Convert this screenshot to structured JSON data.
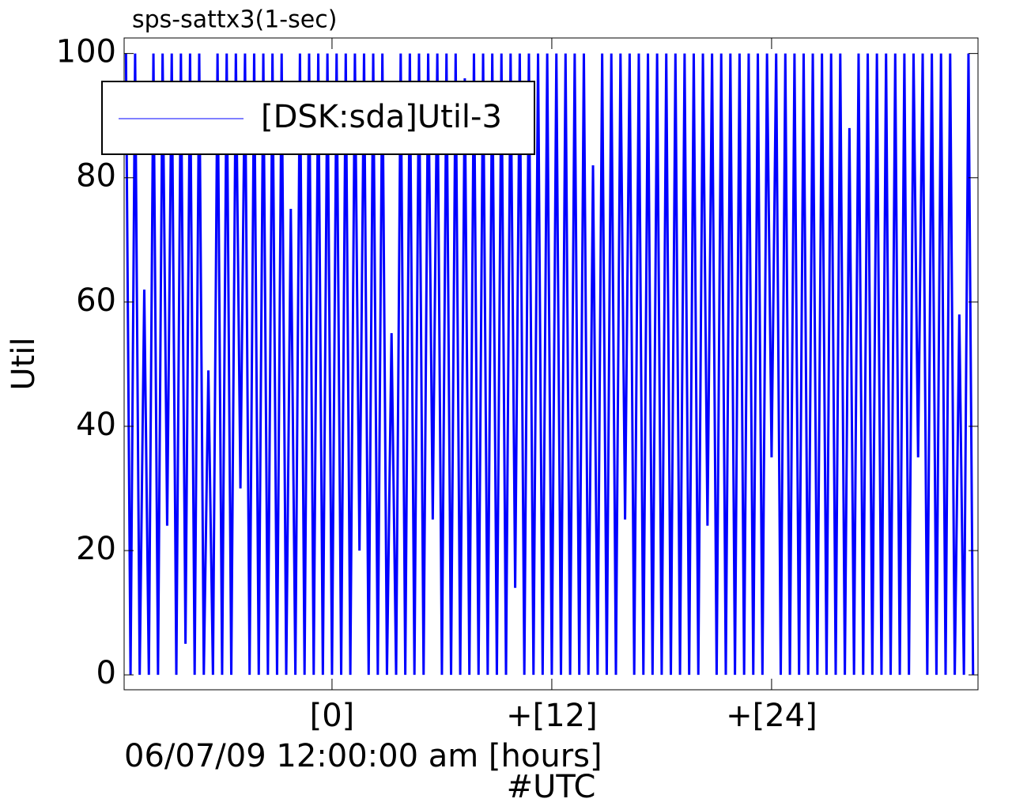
{
  "chart_data": {
    "type": "line",
    "title": "sps-sattx3(1-sec)",
    "x_label": "06/07/09 12:00:00 am [hours]",
    "x_label_2": "#UTC",
    "y_label": "Util",
    "legend": "upper left",
    "xlim": [
      -11.35,
      35.27
    ],
    "ylim": [
      -2.4,
      102.5
    ],
    "xticks": [
      {
        "value": 0,
        "label": "[0]"
      },
      {
        "value": 12,
        "label": "+[12]"
      },
      {
        "value": 24,
        "label": "+[24]"
      }
    ],
    "yticks": [
      0,
      20,
      40,
      60,
      80,
      100
    ],
    "x": [
      -11.25,
      -11,
      -10.75,
      -10.5,
      -10.25,
      -10,
      -9.75,
      -9.5,
      -9.25,
      -9,
      -8.75,
      -8.5,
      -8.25,
      -8,
      -7.75,
      -7.5,
      -7.25,
      -7,
      -6.75,
      -6.5,
      -6.25,
      -6,
      -5.75,
      -5.5,
      -5.25,
      -5,
      -4.75,
      -4.5,
      -4.25,
      -4,
      -3.75,
      -3.5,
      -3.25,
      -3,
      -2.75,
      -2.5,
      -2.25,
      -2,
      -1.75,
      -1.5,
      -1.25,
      -1,
      -0.75,
      -0.5,
      -0.25,
      0,
      0.25,
      0.5,
      0.75,
      1,
      1.25,
      1.5,
      1.75,
      2,
      2.25,
      2.5,
      2.75,
      3,
      3.25,
      3.5,
      3.75,
      4,
      4.25,
      4.5,
      4.75,
      5,
      5.25,
      5.5,
      5.75,
      6,
      6.25,
      6.5,
      6.75,
      7,
      7.25,
      7.5,
      7.75,
      8,
      8.25,
      8.5,
      8.75,
      9,
      9.25,
      9.5,
      9.75,
      10,
      10.25,
      10.5,
      10.75,
      11,
      11.25,
      11.5,
      11.75,
      12,
      12.25,
      12.5,
      12.75,
      13,
      13.25,
      13.5,
      13.75,
      14,
      14.25,
      14.5,
      14.75,
      15,
      15.25,
      15.5,
      15.75,
      16,
      16.25,
      16.5,
      16.75,
      17,
      17.25,
      17.5,
      17.75,
      18,
      18.25,
      18.5,
      18.75,
      19,
      19.25,
      19.5,
      19.75,
      20,
      20.25,
      20.5,
      20.75,
      21,
      21.25,
      21.5,
      21.75,
      22,
      22.25,
      22.5,
      22.75,
      23,
      23.25,
      23.5,
      23.75,
      24,
      24.25,
      24.5,
      24.75,
      25,
      25.25,
      25.5,
      25.75,
      26,
      26.25,
      26.5,
      26.75,
      27,
      27.25,
      27.5,
      27.75,
      28,
      28.25,
      28.5,
      28.75,
      29,
      29.25,
      29.5,
      29.75,
      30,
      30.25,
      30.5,
      30.75,
      31,
      31.25,
      31.5,
      31.75,
      32,
      32.25,
      32.5,
      32.75,
      33,
      33.25,
      33.5,
      33.75,
      34,
      34.25,
      34.5,
      34.75,
      35
    ],
    "series": [
      {
        "name": "[DSK:sda]Util-3",
        "color": "#0000ff",
        "values": [
          100,
          0,
          100,
          0,
          62,
          0,
          100,
          0,
          100,
          24,
          100,
          0,
          100,
          5,
          100,
          0,
          100,
          0,
          49,
          0,
          100,
          0,
          100,
          0,
          100,
          30,
          100,
          0,
          100,
          0,
          100,
          0,
          100,
          0,
          100,
          0,
          75,
          0,
          100,
          0,
          100,
          0,
          100,
          0,
          100,
          0,
          100,
          0,
          100,
          0,
          100,
          20,
          100,
          0,
          100,
          0,
          100,
          0,
          55,
          0,
          100,
          0,
          100,
          0,
          100,
          0,
          100,
          25,
          100,
          0,
          100,
          0,
          100,
          0,
          96,
          0,
          100,
          0,
          100,
          0,
          100,
          0,
          100,
          0,
          100,
          14,
          100,
          0,
          100,
          0,
          100,
          0,
          100,
          0,
          100,
          0,
          100,
          0,
          100,
          0,
          100,
          0,
          82,
          0,
          100,
          0,
          100,
          0,
          100,
          25,
          100,
          0,
          100,
          0,
          100,
          0,
          100,
          0,
          100,
          0,
          100,
          0,
          100,
          0,
          100,
          0,
          100,
          24,
          100,
          0,
          100,
          0,
          100,
          0,
          100,
          0,
          100,
          0,
          100,
          0,
          100,
          35,
          100,
          0,
          100,
          0,
          100,
          0,
          100,
          0,
          100,
          0,
          100,
          0,
          100,
          0,
          100,
          0,
          88,
          0,
          100,
          0,
          100,
          0,
          100,
          0,
          100,
          0,
          100,
          0,
          100,
          0,
          100,
          35,
          100,
          0,
          100,
          0,
          100,
          0,
          100,
          0,
          58,
          0,
          100,
          0
        ]
      }
    ]
  }
}
